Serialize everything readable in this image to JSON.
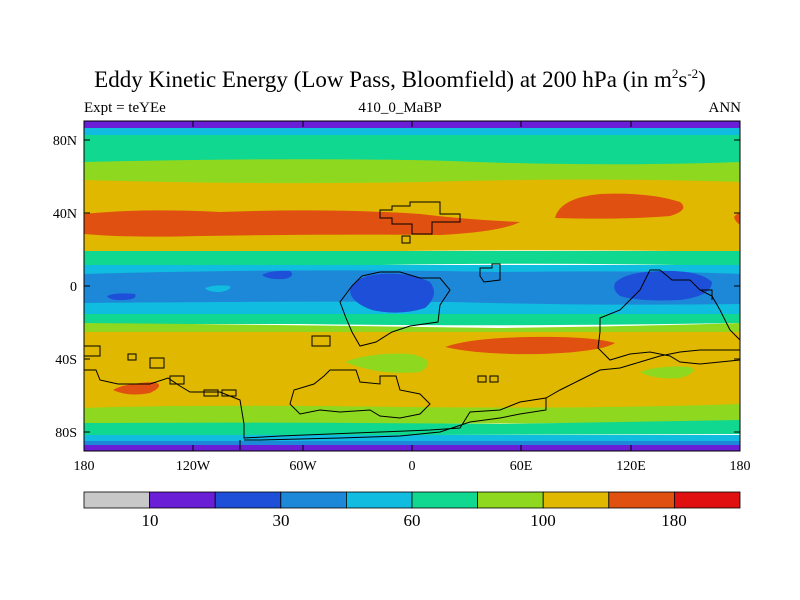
{
  "title": {
    "main": "Eddy Kinetic Energy (Low Pass, Bloomfield) at 200 hPa (in m",
    "sup1": "2",
    "mid": "s",
    "sup2": "-2",
    "close": ")"
  },
  "subtitle": {
    "left": "Expt = teYEe",
    "center": "410_0_MaBP",
    "right": "ANN"
  },
  "axes": {
    "lat_ticks": [
      "80N",
      "40N",
      "0",
      "40S",
      "80S"
    ],
    "lon_ticks": [
      "180",
      "120W",
      "60W",
      "0",
      "60E",
      "120E",
      "180"
    ]
  },
  "colorbar": {
    "colors": [
      "#c8c8c8",
      "#6a1fd6",
      "#1e4fd8",
      "#1e88d8",
      "#10bce0",
      "#10d890",
      "#8ed820",
      "#e0b800",
      "#e05010",
      "#e01010"
    ],
    "labels": [
      "10",
      "30",
      "60",
      "100",
      "180"
    ]
  }
}
